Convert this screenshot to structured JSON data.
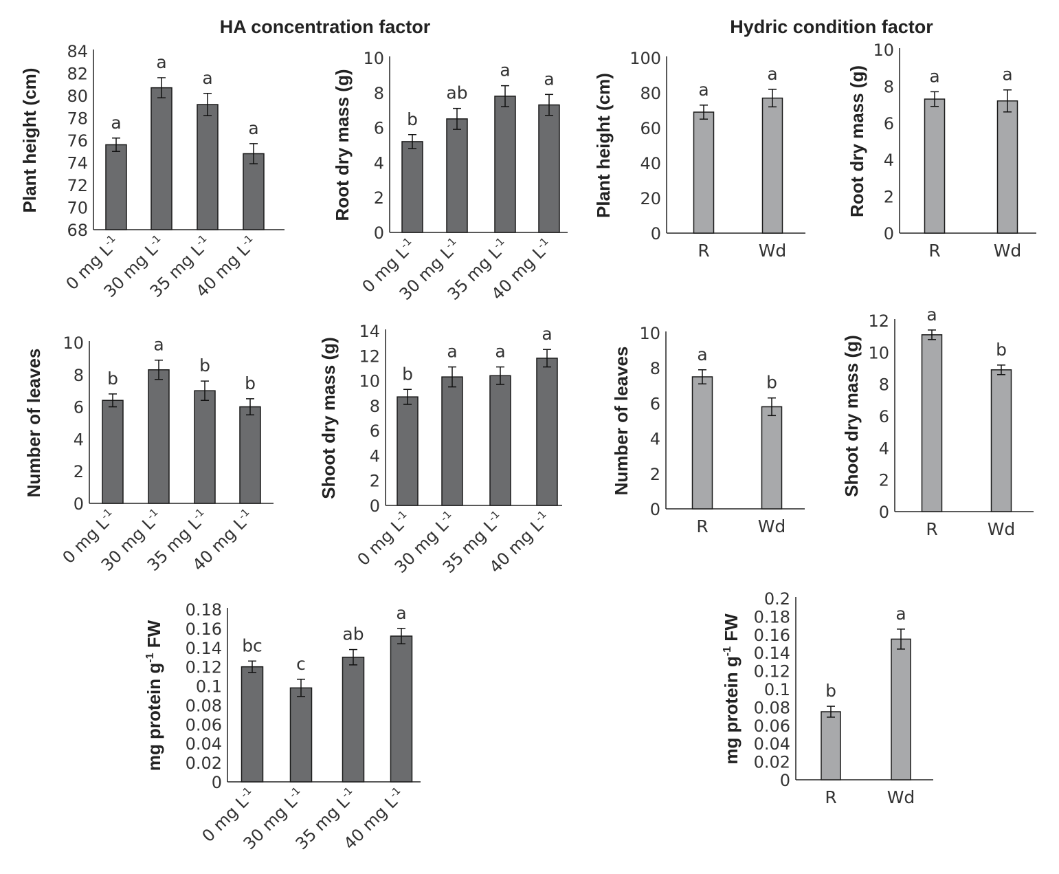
{
  "titles": {
    "left": "HA concentration factor",
    "right": "Hydric condition factor"
  },
  "colors": {
    "dark_bar": "#6b6c6e",
    "light_bar": "#a8a9ab",
    "axis": "#222222",
    "text": "#333333"
  },
  "chart_data": [
    {
      "id": "ha-plant-height",
      "type": "bar",
      "factor": "HA concentration factor",
      "categories": [
        "0 mg L-1",
        "30 mg L-1",
        "35 mg L-1",
        "40 mg L-1"
      ],
      "values": [
        75.6,
        80.7,
        79.2,
        74.8
      ],
      "errors": [
        0.6,
        0.9,
        1.0,
        0.9
      ],
      "letters": [
        "a",
        "a",
        "a",
        "a"
      ],
      "ylabel": "Plant height (cm)",
      "ylim": [
        68,
        84
      ],
      "yticks": [
        "68",
        "70",
        "72",
        "74",
        "76",
        "78",
        "80",
        "82",
        "84"
      ]
    },
    {
      "id": "ha-root-dry-mass",
      "type": "bar",
      "factor": "HA concentration factor",
      "categories": [
        "0 mg L-1",
        "30 mg L-1",
        "35 mg L-1",
        "40 mg L-1"
      ],
      "values": [
        5.2,
        6.5,
        7.8,
        7.3
      ],
      "errors": [
        0.4,
        0.6,
        0.6,
        0.6
      ],
      "letters": [
        "b",
        "ab",
        "a",
        "a"
      ],
      "ylabel": "Root dry mass (g)",
      "ylim": [
        0,
        10
      ],
      "yticks": [
        "0",
        "2",
        "4",
        "6",
        "8",
        "10"
      ]
    },
    {
      "id": "ha-number-of-leaves",
      "type": "bar",
      "factor": "HA concentration factor",
      "categories": [
        "0 mg L-1",
        "30 mg L-1",
        "35 mg L-1",
        "40 mg L-1"
      ],
      "values": [
        6.4,
        8.3,
        7.0,
        6.0
      ],
      "errors": [
        0.4,
        0.6,
        0.6,
        0.5
      ],
      "letters": [
        "b",
        "a",
        "b",
        "b"
      ],
      "ylabel": "Number of leaves",
      "ylim": [
        0,
        10
      ],
      "yticks": [
        "0",
        "2",
        "4",
        "6",
        "8",
        "10"
      ]
    },
    {
      "id": "ha-shoot-dry-mass",
      "type": "bar",
      "factor": "HA concentration factor",
      "categories": [
        "0 mg L-1",
        "30 mg L-1",
        "35 mg L-1",
        "40 mg L-1"
      ],
      "values": [
        8.7,
        10.3,
        10.4,
        11.8
      ],
      "errors": [
        0.6,
        0.8,
        0.7,
        0.7
      ],
      "letters": [
        "b",
        "a",
        "a",
        "a"
      ],
      "ylabel": "Shoot dry mass (g)",
      "ylim": [
        0,
        14
      ],
      "yticks": [
        "0",
        "2",
        "4",
        "6",
        "8",
        "10",
        "12",
        "14"
      ]
    },
    {
      "id": "ha-protein",
      "type": "bar",
      "factor": "HA concentration factor",
      "categories": [
        "0 mg L-1",
        "30 mg L-1",
        "35 mg L-1",
        "40 mg L-1"
      ],
      "values": [
        0.12,
        0.098,
        0.13,
        0.152
      ],
      "errors": [
        0.006,
        0.009,
        0.008,
        0.008
      ],
      "letters": [
        "bc",
        "c",
        "ab",
        "a"
      ],
      "ylabel": "mg protein g-1 FW",
      "ylim": [
        0,
        0.18
      ],
      "yticks": [
        "0",
        "0.02",
        "0.04",
        "0.06",
        "0.08",
        "0.1",
        "0.12",
        "0.14",
        "0.16",
        "0.18"
      ]
    },
    {
      "id": "hc-plant-height",
      "type": "bar",
      "factor": "Hydric condition factor",
      "categories": [
        "R",
        "Wd"
      ],
      "values": [
        69,
        77
      ],
      "errors": [
        4,
        5
      ],
      "letters": [
        "a",
        "a"
      ],
      "ylabel": "Plant height (cm)",
      "ylim": [
        0,
        100
      ],
      "yticks": [
        "0",
        "20",
        "40",
        "60",
        "80",
        "100"
      ]
    },
    {
      "id": "hc-root-dry-mass",
      "type": "bar",
      "factor": "Hydric condition factor",
      "categories": [
        "R",
        "Wd"
      ],
      "values": [
        7.3,
        7.2
      ],
      "errors": [
        0.4,
        0.6
      ],
      "letters": [
        "a",
        "a"
      ],
      "ylabel": "Root dry mass (g)",
      "ylim": [
        0,
        10
      ],
      "yticks": [
        "0",
        "2",
        "4",
        "6",
        "8",
        "10"
      ]
    },
    {
      "id": "hc-number-of-leaves",
      "type": "bar",
      "factor": "Hydric condition factor",
      "categories": [
        "R",
        "Wd"
      ],
      "values": [
        7.5,
        5.8
      ],
      "errors": [
        0.4,
        0.5
      ],
      "letters": [
        "a",
        "b"
      ],
      "ylabel": "Number of leaves",
      "ylim": [
        0,
        10
      ],
      "yticks": [
        "0",
        "2",
        "4",
        "6",
        "8",
        "10"
      ]
    },
    {
      "id": "hc-shoot-dry-mass",
      "type": "bar",
      "factor": "Hydric condition factor",
      "categories": [
        "R",
        "Wd"
      ],
      "values": [
        11.1,
        8.9
      ],
      "errors": [
        0.3,
        0.3
      ],
      "letters": [
        "a",
        "b"
      ],
      "ylabel": "Shoot dry mass (g)",
      "ylim": [
        0,
        12
      ],
      "yticks": [
        "0",
        "2",
        "4",
        "6",
        "8",
        "10",
        "12"
      ]
    },
    {
      "id": "hc-protein",
      "type": "bar",
      "factor": "Hydric condition factor",
      "categories": [
        "R",
        "Wd"
      ],
      "values": [
        0.075,
        0.155
      ],
      "errors": [
        0.006,
        0.011
      ],
      "letters": [
        "b",
        "a"
      ],
      "ylabel": "mg protein g-1 FW",
      "ylim": [
        0,
        0.2
      ],
      "yticks": [
        "0",
        "0.02",
        "0.04",
        "0.06",
        "0.08",
        "0.1",
        "0.12",
        "0.14",
        "0.16",
        "0.18",
        "0.2"
      ]
    }
  ]
}
